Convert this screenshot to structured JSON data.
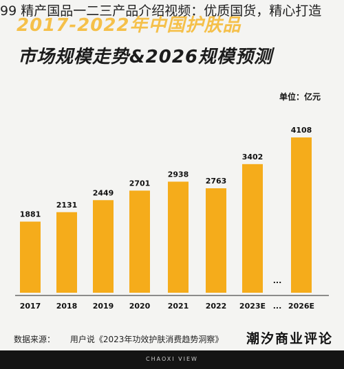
{
  "overlay": {
    "title": "99 精产国品一二三产品介绍视频：优质国货，精心打造"
  },
  "poster": {
    "title_line1": "2017-2022年中国护肤品",
    "title_line2": "市场规模走势&2026规模预测",
    "unit": "单位：亿元",
    "source_label": "数据来源：",
    "source_text": "用户说《2023年功效护肤消费趋势洞察》",
    "brand": "潮汐商业评论",
    "footer": "CHAOXI VIEW",
    "gap_marker": "..."
  },
  "colors": {
    "bar": "#f5ac1b",
    "footer_bg": "#141414",
    "title_accent": "#f5c04a"
  },
  "chart_data": {
    "type": "bar",
    "title": "2017-2022年中国护肤品市场规模走势&2026规模预测",
    "ylabel": "单位：亿元",
    "categories": [
      "2017",
      "2018",
      "2019",
      "2020",
      "2021",
      "2022",
      "2023E",
      "...",
      "2026E"
    ],
    "values": [
      1881,
      2131,
      2449,
      2701,
      2938,
      2763,
      3402,
      null,
      4108
    ],
    "ylim": [
      0,
      4500
    ],
    "grid": false,
    "legend": "none"
  }
}
